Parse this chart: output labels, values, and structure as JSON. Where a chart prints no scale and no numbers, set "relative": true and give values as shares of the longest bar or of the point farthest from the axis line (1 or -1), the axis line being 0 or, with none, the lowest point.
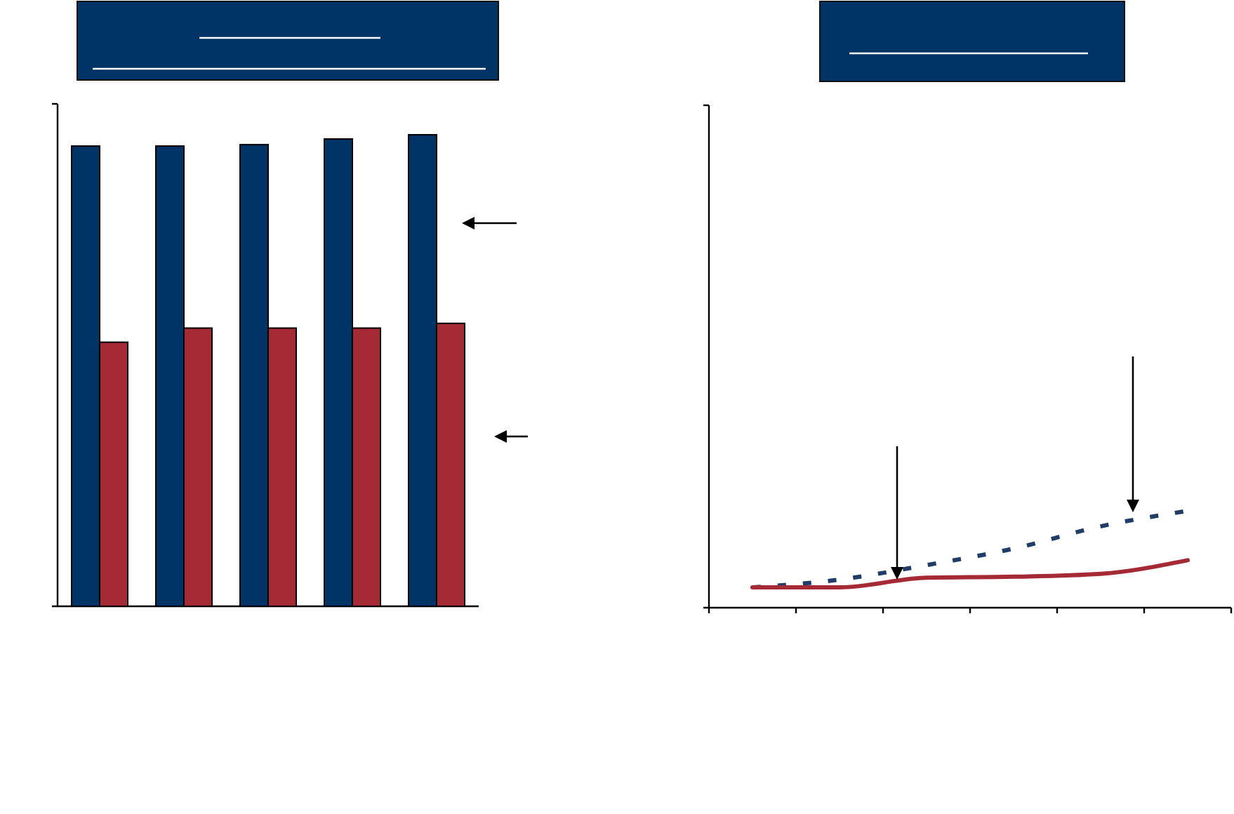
{
  "chart_data": [
    {
      "type": "bar",
      "relative": true,
      "categories": [
        null,
        null,
        null,
        null,
        null
      ],
      "series": [
        {
          "color": "#003366",
          "values": [
            0.976,
            0.976,
            0.979,
            0.991,
            1
          ]
        },
        {
          "color": "#a52a35",
          "values": [
            0.56,
            0.59,
            0.59,
            0.59,
            0.6
          ]
        }
      ]
    },
    {
      "type": "line",
      "relative": true,
      "categories": [
        null,
        null,
        null,
        null,
        null,
        null
      ],
      "series": [
        {
          "color": "#1f3d66",
          "line_style": "dashed",
          "values": [
            0.21,
            0.29,
            0.44,
            0.61,
            0.84,
            1
          ]
        },
        {
          "color": "#a52a35",
          "line_style": "solid",
          "values": [
            0.21,
            0.21,
            0.31,
            0.32,
            0.35,
            0.49
          ]
        }
      ]
    }
  ]
}
